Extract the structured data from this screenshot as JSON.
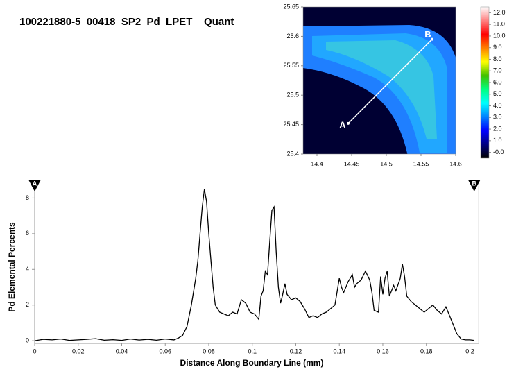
{
  "chart_data": [
    {
      "type": "heatmap",
      "title": "100221880-5_00418_SP2_Pd_LPET__Quant",
      "xlim": [
        14.38,
        14.6
      ],
      "xticks": [
        14.4,
        14.45,
        14.5,
        14.55,
        14.6
      ],
      "ylim": [
        25.4,
        25.65
      ],
      "yticks": [
        25.4,
        25.45,
        25.5,
        25.55,
        25.6,
        25.65
      ],
      "clim": [
        -0.5,
        12.5
      ],
      "colorbar_ticks": [
        {
          "value": 12,
          "label": "12.0"
        },
        {
          "value": 11,
          "label": "11.0"
        },
        {
          "value": 10,
          "label": "10.0"
        },
        {
          "value": 9,
          "label": "9.0"
        },
        {
          "value": 8,
          "label": "8.0"
        },
        {
          "value": 7,
          "label": "7.0"
        },
        {
          "value": 6,
          "label": "6.0"
        },
        {
          "value": 5,
          "label": "5.0"
        },
        {
          "value": 4,
          "label": "4.0"
        },
        {
          "value": 3,
          "label": "3.0"
        },
        {
          "value": 2,
          "label": "2.0"
        },
        {
          "value": 1,
          "label": "1.0"
        },
        {
          "value": 0,
          "label": "-0.0"
        }
      ],
      "colorbar_colors": [
        "#000000",
        "#00007f",
        "#0000ff",
        "#0080ff",
        "#00ffff",
        "#00ff80",
        "#40c000",
        "#ffff00",
        "#ff8000",
        "#ff0000",
        "#ff8080",
        "#ffffff"
      ],
      "profile_line": {
        "x": [
          14.445,
          14.566
        ],
        "y": [
          25.452,
          25.595
        ],
        "labels": [
          "A",
          "B"
        ]
      }
    },
    {
      "type": "line",
      "xlabel": "Distance Along Boundary Line (mm)",
      "ylabel": "Pd Elemental Percents",
      "xlim": [
        0,
        0.204
      ],
      "xticks": [
        0,
        0.02,
        0.04,
        0.06,
        0.08,
        0.1,
        0.12,
        0.14,
        0.16,
        0.18,
        0.2
      ],
      "ylim": [
        -0.15,
        8.6
      ],
      "yticks": [
        0,
        2,
        4,
        6,
        8
      ],
      "color": "#000000",
      "endpoints": [
        {
          "x": 0,
          "label": "A"
        },
        {
          "x": 0.202,
          "label": "B"
        }
      ],
      "x": [
        0,
        0.004,
        0.008,
        0.012,
        0.016,
        0.02,
        0.024,
        0.028,
        0.032,
        0.036,
        0.04,
        0.044,
        0.048,
        0.052,
        0.056,
        0.06,
        0.064,
        0.066,
        0.068,
        0.07,
        0.072,
        0.074,
        0.075,
        0.076,
        0.077,
        0.078,
        0.079,
        0.08,
        0.081,
        0.082,
        0.083,
        0.085,
        0.087,
        0.089,
        0.091,
        0.093,
        0.095,
        0.097,
        0.099,
        0.101,
        0.103,
        0.104,
        0.105,
        0.106,
        0.107,
        0.108,
        0.109,
        0.11,
        0.111,
        0.112,
        0.113,
        0.114,
        0.115,
        0.116,
        0.118,
        0.12,
        0.122,
        0.124,
        0.126,
        0.128,
        0.13,
        0.132,
        0.134,
        0.136,
        0.138,
        0.14,
        0.141,
        0.142,
        0.144,
        0.146,
        0.147,
        0.148,
        0.15,
        0.152,
        0.154,
        0.155,
        0.156,
        0.158,
        0.159,
        0.16,
        0.161,
        0.162,
        0.163,
        0.165,
        0.166,
        0.168,
        0.169,
        0.17,
        0.171,
        0.173,
        0.175,
        0.177,
        0.179,
        0.181,
        0.183,
        0.185,
        0.187,
        0.189,
        0.19,
        0.192,
        0.194,
        0.196,
        0.198,
        0.2,
        0.202
      ],
      "values": [
        0,
        0.08,
        0.05,
        0.1,
        0.02,
        0.05,
        0.08,
        0.12,
        0.03,
        0.06,
        0.02,
        0.1,
        0.04,
        0.08,
        0.03,
        0.1,
        0.05,
        0.15,
        0.3,
        0.8,
        2,
        3.5,
        4.5,
        6,
        7.5,
        8.5,
        7.8,
        6,
        4.5,
        3,
        2,
        1.6,
        1.5,
        1.4,
        1.6,
        1.5,
        2.3,
        2.1,
        1.6,
        1.5,
        1.2,
        2.5,
        2.8,
        3.9,
        3.7,
        5.5,
        7.3,
        7.5,
        5,
        3,
        2.1,
        2.6,
        3.2,
        2.6,
        2.3,
        2.4,
        2.2,
        1.8,
        1.3,
        1.4,
        1.3,
        1.5,
        1.6,
        1.8,
        2,
        3.5,
        3,
        2.7,
        3.3,
        3.7,
        3,
        3.2,
        3.4,
        3.9,
        3.4,
        2.7,
        1.7,
        1.6,
        3.6,
        2.6,
        3.5,
        3.9,
        2.5,
        3.1,
        2.8,
        3.5,
        4.3,
        3.6,
        2.5,
        2.2,
        2,
        1.8,
        1.6,
        1.8,
        2,
        1.7,
        1.5,
        1.9,
        1.6,
        1,
        0.4,
        0.1,
        0.05,
        0.05,
        0.02
      ]
    }
  ]
}
